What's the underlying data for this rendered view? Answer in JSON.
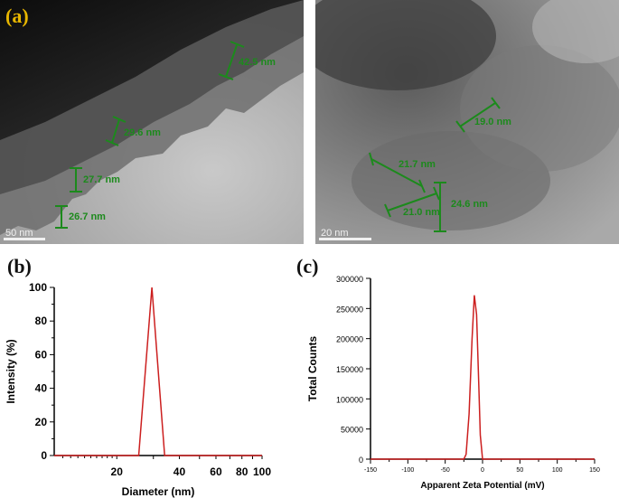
{
  "panels": {
    "a": {
      "letter": "(a)"
    },
    "b": {
      "letter": "(b)"
    },
    "c": {
      "letter": "(c)"
    }
  },
  "tem_left": {
    "scale_bar": "50 nm",
    "measurements": [
      "42.5 nm",
      "29.6 nm",
      "27.7 nm",
      "26.7 nm"
    ]
  },
  "tem_right": {
    "scale_bar": "20 nm",
    "measurements": [
      "19.0 nm",
      "21.7 nm",
      "21.0 nm",
      "24.6 nm"
    ]
  },
  "colors": {
    "line": "#cc1f1f",
    "measure": "#1c8a1c",
    "label_gold": "#e7b600"
  },
  "chart_data": [
    {
      "type": "line",
      "panel": "(b)",
      "xlabel": "Diameter (nm)",
      "ylabel": "Intensity (%)",
      "x_scale": "log",
      "xlim": [
        10,
        100
      ],
      "ylim": [
        0,
        100
      ],
      "xticks": [
        20,
        40,
        60,
        80,
        100
      ],
      "yticks": [
        0,
        20,
        40,
        60,
        80,
        100
      ],
      "series": [
        {
          "x": [
            10,
            25.5,
            29.5,
            34,
            100
          ],
          "y": [
            0,
            0,
            100,
            0,
            0
          ]
        }
      ]
    },
    {
      "type": "line",
      "panel": "(c)",
      "xlabel": "Apparent Zeta Potential (mV)",
      "ylabel": "Total Counts",
      "xlim": [
        -150,
        150
      ],
      "ylim": [
        0,
        300000
      ],
      "xticks": [
        -150,
        -100,
        -50,
        0,
        50,
        100,
        150
      ],
      "yticks": [
        0,
        50000,
        100000,
        150000,
        200000,
        250000,
        300000
      ],
      "series": [
        {
          "x": [
            -150,
            -25,
            -22,
            -18,
            -14,
            -11,
            -8,
            -5,
            -3,
            0,
            150
          ],
          "y": [
            0,
            0,
            8000,
            75000,
            200000,
            272000,
            240000,
            120000,
            40000,
            0,
            0
          ]
        }
      ]
    }
  ]
}
